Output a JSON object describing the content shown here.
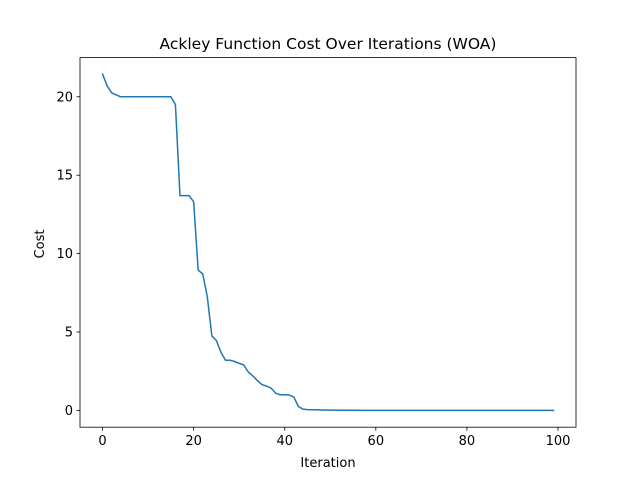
{
  "chart_data": {
    "type": "line",
    "title": "Ackley Function Cost Over Iterations (WOA)",
    "xlabel": "Iteration",
    "ylabel": "Cost",
    "xlim": [
      -4.95,
      103.95
    ],
    "ylim": [
      -1.07,
      22.5
    ],
    "xticks": [
      0,
      20,
      40,
      60,
      80,
      100
    ],
    "yticks": [
      0,
      5,
      10,
      15,
      20
    ],
    "grid": false,
    "legend": "none",
    "series": [
      {
        "color": "#1f77b4",
        "x": [
          0,
          1,
          2,
          3,
          4,
          5,
          6,
          7,
          8,
          9,
          10,
          11,
          12,
          13,
          14,
          15,
          16,
          17,
          18,
          19,
          20,
          21,
          22,
          23,
          24,
          25,
          26,
          27,
          28,
          29,
          30,
          31,
          32,
          33,
          34,
          35,
          36,
          37,
          38,
          39,
          40,
          41,
          42,
          43,
          44,
          45,
          46,
          47,
          48,
          49,
          50,
          51,
          52,
          53,
          54,
          55,
          56,
          57,
          58,
          59,
          60,
          61,
          62,
          63,
          64,
          65,
          66,
          67,
          68,
          69,
          70,
          71,
          72,
          73,
          74,
          75,
          76,
          77,
          78,
          79,
          80,
          81,
          82,
          83,
          84,
          85,
          86,
          87,
          88,
          89,
          90,
          91,
          92,
          93,
          94,
          95,
          96,
          97,
          98,
          99
        ],
        "y": [
          21.45,
          20.7,
          20.25,
          20.12,
          20.0,
          20.0,
          20.0,
          20.0,
          20.0,
          20.0,
          20.0,
          20.0,
          20.0,
          20.0,
          20.0,
          20.0,
          19.5,
          13.7,
          13.7,
          13.7,
          13.3,
          8.95,
          8.7,
          7.25,
          4.75,
          4.45,
          3.7,
          3.2,
          3.2,
          3.12,
          3.0,
          2.9,
          2.45,
          2.2,
          1.9,
          1.65,
          1.55,
          1.42,
          1.1,
          1.0,
          1.0,
          0.98,
          0.85,
          0.25,
          0.08,
          0.05,
          0.04,
          0.04,
          0.03,
          0.03,
          0.02,
          0.02,
          0.01,
          0.01,
          0.01,
          0.01,
          0.01,
          0.0,
          0.0,
          0.0,
          0.0,
          0.0,
          0.0,
          0.0,
          0.0,
          0.0,
          0.0,
          0.0,
          0.0,
          0.0,
          0.0,
          0.0,
          0.0,
          0.0,
          0.0,
          0.0,
          0.0,
          0.0,
          0.0,
          0.0,
          0.0,
          0.0,
          0.0,
          0.0,
          0.0,
          0.0,
          0.0,
          0.0,
          0.0,
          0.0,
          0.0,
          0.0,
          0.0,
          0.0,
          0.0,
          0.0,
          0.0,
          0.0,
          0.0,
          0.0
        ]
      }
    ]
  }
}
